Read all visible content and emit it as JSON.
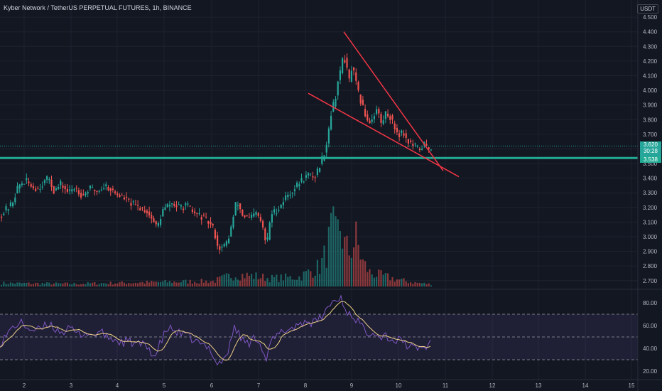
{
  "header": {
    "title": "Kyber Network / TetherUS PERPETUAL FUTURES, 1h, BINANCE",
    "currency": "USDT"
  },
  "price_tags": {
    "last_price": "3.620",
    "countdown": "30:28",
    "level_price": "3.538"
  },
  "chart_data": {
    "type": "candlestick",
    "symbol": "KNCUSDT.P",
    "timeframe": "1h",
    "exchange": "BINANCE",
    "price_axis": {
      "min": 2.66,
      "max": 4.52,
      "ticks": [
        "4.500",
        "4.400",
        "4.300",
        "4.200",
        "4.100",
        "4.000",
        "3.900",
        "3.800",
        "3.700",
        "3.600",
        "3.500",
        "3.400",
        "3.300",
        "3.200",
        "3.100",
        "3.000",
        "2.900",
        "2.800",
        "2.700"
      ]
    },
    "time_axis": {
      "labels": [
        "2",
        "3",
        "4",
        "5",
        "6",
        "7",
        "8",
        "9",
        "10",
        "11",
        "12",
        "13",
        "14",
        "15"
      ]
    },
    "last_price": 3.62,
    "horizontal_level": 3.538,
    "price_path": [
      [
        0,
        3.15
      ],
      [
        15,
        3.22
      ],
      [
        25,
        3.35
      ],
      [
        35,
        3.38
      ],
      [
        45,
        3.34
      ],
      [
        52,
        3.33
      ],
      [
        60,
        3.37
      ],
      [
        68,
        3.4
      ],
      [
        75,
        3.31
      ],
      [
        85,
        3.36
      ],
      [
        95,
        3.3
      ],
      [
        105,
        3.34
      ],
      [
        115,
        3.28
      ],
      [
        125,
        3.33
      ],
      [
        135,
        3.31
      ],
      [
        148,
        3.35
      ],
      [
        160,
        3.3
      ],
      [
        175,
        3.26
      ],
      [
        185,
        3.22
      ],
      [
        195,
        3.2
      ],
      [
        205,
        3.18
      ],
      [
        213,
        3.12
      ],
      [
        220,
        3.06
      ],
      [
        228,
        3.18
      ],
      [
        240,
        3.23
      ],
      [
        250,
        3.2
      ],
      [
        262,
        3.21
      ],
      [
        272,
        3.16
      ],
      [
        282,
        3.14
      ],
      [
        292,
        3.1
      ],
      [
        300,
        3.05
      ],
      [
        306,
        2.92
      ],
      [
        314,
        2.93
      ],
      [
        320,
        2.98
      ],
      [
        326,
        3.1
      ],
      [
        332,
        3.25
      ],
      [
        340,
        3.15
      ],
      [
        350,
        3.12
      ],
      [
        360,
        3.16
      ],
      [
        368,
        3.08
      ],
      [
        374,
        2.93
      ],
      [
        380,
        3.15
      ],
      [
        392,
        3.2
      ],
      [
        402,
        3.28
      ],
      [
        412,
        3.32
      ],
      [
        422,
        3.38
      ],
      [
        432,
        3.42
      ],
      [
        442,
        3.41
      ],
      [
        450,
        3.5
      ],
      [
        458,
        3.62
      ],
      [
        462,
        3.75
      ],
      [
        466,
        3.88
      ],
      [
        470,
        3.92
      ],
      [
        474,
        4.05
      ],
      [
        478,
        4.12
      ],
      [
        482,
        4.25
      ],
      [
        486,
        4.18
      ],
      [
        490,
        4.05
      ],
      [
        494,
        4.15
      ],
      [
        498,
        4.1
      ],
      [
        502,
        4.0
      ],
      [
        507,
        3.92
      ],
      [
        512,
        3.85
      ],
      [
        518,
        3.78
      ],
      [
        524,
        3.82
      ],
      [
        530,
        3.88
      ],
      [
        536,
        3.76
      ],
      [
        542,
        3.85
      ],
      [
        548,
        3.82
      ],
      [
        554,
        3.75
      ],
      [
        560,
        3.7
      ],
      [
        566,
        3.72
      ],
      [
        572,
        3.66
      ],
      [
        578,
        3.63
      ],
      [
        584,
        3.61
      ],
      [
        590,
        3.6
      ],
      [
        596,
        3.63
      ],
      [
        602,
        3.6
      ],
      [
        608,
        3.62
      ]
    ],
    "volume_profile": [
      [
        0,
        0.05
      ],
      [
        100,
        0.04
      ],
      [
        200,
        0.06
      ],
      [
        300,
        0.08
      ],
      [
        330,
        0.18
      ],
      [
        360,
        0.15
      ],
      [
        380,
        0.12
      ],
      [
        420,
        0.14
      ],
      [
        450,
        0.3
      ],
      [
        460,
        0.55
      ],
      [
        466,
        0.85
      ],
      [
        472,
        0.7
      ],
      [
        478,
        0.9
      ],
      [
        484,
        0.6
      ],
      [
        490,
        0.5
      ],
      [
        500,
        0.7
      ],
      [
        510,
        0.35
      ],
      [
        520,
        0.2
      ],
      [
        540,
        0.15
      ],
      [
        560,
        0.1
      ],
      [
        580,
        0.06
      ],
      [
        600,
        0.04
      ],
      [
        608,
        0.03
      ]
    ],
    "trendlines": [
      {
        "name": "upper-trendline",
        "color": "#f23645",
        "from": {
          "x": 484,
          "price": 4.4
        },
        "to": {
          "x": 624,
          "price": 3.45
        }
      },
      {
        "name": "lower-trendline",
        "color": "#f23645",
        "from": {
          "x": 434,
          "price": 3.98
        },
        "to": {
          "x": 646,
          "price": 3.41
        }
      }
    ],
    "rsi": {
      "ticks": [
        "80.00",
        "60.00",
        "40.00",
        "20.00"
      ],
      "range": [
        15,
        90
      ],
      "bands": [
        70,
        50,
        30
      ],
      "line_color": "#7e57c2",
      "ma_color": "#f0d28a",
      "band_fill": "#7e57c2",
      "series": [
        [
          0,
          45
        ],
        [
          10,
          52
        ],
        [
          20,
          60
        ],
        [
          30,
          62
        ],
        [
          40,
          58
        ],
        [
          50,
          55
        ],
        [
          60,
          58
        ],
        [
          70,
          62
        ],
        [
          80,
          56
        ],
        [
          90,
          55
        ],
        [
          100,
          57
        ],
        [
          110,
          52
        ],
        [
          120,
          54
        ],
        [
          130,
          51
        ],
        [
          140,
          55
        ],
        [
          150,
          50
        ],
        [
          160,
          48
        ],
        [
          170,
          45
        ],
        [
          180,
          46
        ],
        [
          190,
          44
        ],
        [
          200,
          43
        ],
        [
          210,
          40
        ],
        [
          218,
          32
        ],
        [
          226,
          45
        ],
        [
          236,
          58
        ],
        [
          246,
          55
        ],
        [
          256,
          52
        ],
        [
          266,
          50
        ],
        [
          276,
          46
        ],
        [
          286,
          42
        ],
        [
          296,
          40
        ],
        [
          306,
          26
        ],
        [
          314,
          30
        ],
        [
          322,
          38
        ],
        [
          330,
          60
        ],
        [
          340,
          48
        ],
        [
          350,
          44
        ],
        [
          360,
          50
        ],
        [
          368,
          44
        ],
        [
          374,
          28
        ],
        [
          382,
          46
        ],
        [
          392,
          52
        ],
        [
          402,
          56
        ],
        [
          412,
          58
        ],
        [
          422,
          62
        ],
        [
          432,
          64
        ],
        [
          442,
          62
        ],
        [
          450,
          66
        ],
        [
          458,
          72
        ],
        [
          464,
          78
        ],
        [
          470,
          83
        ],
        [
          476,
          80
        ],
        [
          480,
          86
        ],
        [
          486,
          74
        ],
        [
          492,
          70
        ],
        [
          498,
          68
        ],
        [
          504,
          64
        ],
        [
          510,
          58
        ],
        [
          518,
          54
        ],
        [
          526,
          56
        ],
        [
          534,
          50
        ],
        [
          542,
          52
        ],
        [
          550,
          48
        ],
        [
          558,
          46
        ],
        [
          566,
          48
        ],
        [
          574,
          42
        ],
        [
          582,
          40
        ],
        [
          590,
          41
        ],
        [
          598,
          40
        ],
        [
          608,
          47
        ]
      ]
    },
    "colors": {
      "up": "#26a69a",
      "down": "#ef5350",
      "level": "#22ab94",
      "background": "#131722",
      "grid": "#1e222d"
    }
  }
}
